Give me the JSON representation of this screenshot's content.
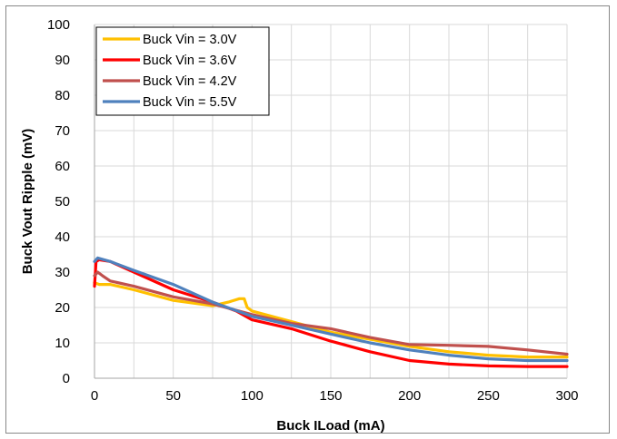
{
  "chart_data": {
    "type": "line",
    "title": "",
    "xlabel": "Buck ILoad (mA)",
    "ylabel": "Buck Vout Ripple (mV)",
    "xlim": [
      0,
      300
    ],
    "ylim": [
      0,
      100
    ],
    "x_ticks": [
      "0",
      "50",
      "100",
      "150",
      "200",
      "250",
      "300"
    ],
    "y_ticks": [
      "0",
      "10",
      "20",
      "30",
      "40",
      "50",
      "60",
      "70",
      "80",
      "90",
      "100"
    ],
    "x_grid_step": 25,
    "y_grid_step": 10,
    "grid": true,
    "legend_position": "top-left",
    "series": [
      {
        "name": "Buck Vin = 3.0V",
        "color": "#FFC000",
        "points": [
          [
            0,
            27
          ],
          [
            3,
            26.5
          ],
          [
            10,
            26.5
          ],
          [
            25,
            25
          ],
          [
            50,
            22
          ],
          [
            75,
            20.5
          ],
          [
            85,
            21.5
          ],
          [
            92,
            22.5
          ],
          [
            95,
            22.5
          ],
          [
            97,
            20
          ],
          [
            100,
            19
          ],
          [
            125,
            16
          ],
          [
            150,
            13
          ],
          [
            175,
            11
          ],
          [
            200,
            9
          ],
          [
            225,
            7.5
          ],
          [
            250,
            6.5
          ],
          [
            275,
            6
          ],
          [
            300,
            6
          ]
        ]
      },
      {
        "name": "Buck Vin = 3.6V",
        "color": "#FF0000",
        "points": [
          [
            0,
            26
          ],
          [
            1,
            33
          ],
          [
            3,
            33.5
          ],
          [
            10,
            33
          ],
          [
            25,
            30
          ],
          [
            50,
            25
          ],
          [
            75,
            21.5
          ],
          [
            90,
            19
          ],
          [
            100,
            16.5
          ],
          [
            125,
            14
          ],
          [
            150,
            10.5
          ],
          [
            175,
            7.5
          ],
          [
            200,
            5
          ],
          [
            225,
            4
          ],
          [
            250,
            3.5
          ],
          [
            275,
            3.3
          ],
          [
            300,
            3.3
          ]
        ]
      },
      {
        "name": "Buck Vin = 4.2V",
        "color": "#C0504D",
        "points": [
          [
            0,
            29
          ],
          [
            2,
            30
          ],
          [
            5,
            29
          ],
          [
            10,
            27.5
          ],
          [
            25,
            26
          ],
          [
            50,
            23
          ],
          [
            75,
            21
          ],
          [
            100,
            18
          ],
          [
            125,
            15.5
          ],
          [
            150,
            14
          ],
          [
            175,
            11.5
          ],
          [
            200,
            9.5
          ],
          [
            225,
            9.3
          ],
          [
            250,
            9
          ],
          [
            275,
            8
          ],
          [
            300,
            6.8
          ]
        ]
      },
      {
        "name": "Buck Vin = 5.5V",
        "color": "#4F81BD",
        "points": [
          [
            0,
            33
          ],
          [
            2,
            34
          ],
          [
            10,
            33
          ],
          [
            25,
            30.5
          ],
          [
            50,
            26.5
          ],
          [
            75,
            21.5
          ],
          [
            100,
            17.5
          ],
          [
            125,
            15
          ],
          [
            150,
            12.5
          ],
          [
            175,
            10
          ],
          [
            200,
            8
          ],
          [
            225,
            6.5
          ],
          [
            250,
            5.5
          ],
          [
            275,
            5
          ],
          [
            300,
            5
          ]
        ]
      }
    ]
  }
}
